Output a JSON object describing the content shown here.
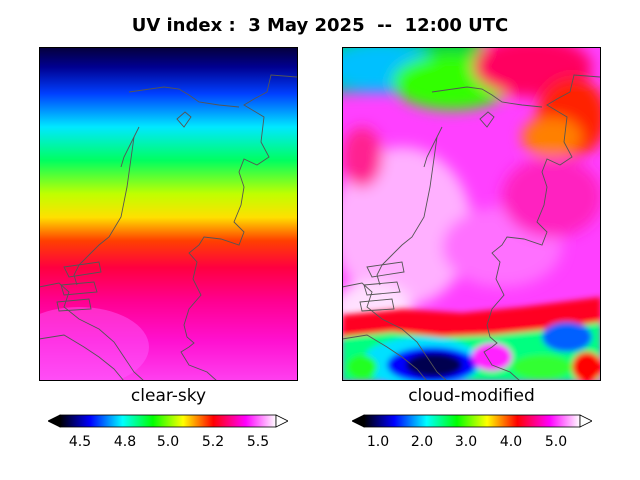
{
  "title": "UV index :  3 May 2025  --  12:00 UTC",
  "panels": [
    {
      "label": "clear-sky",
      "colorbar": {
        "ticks": [
          "4.5",
          "4.8",
          "5.0",
          "5.2",
          "5.5"
        ]
      },
      "field": "smooth latitudinal gradient, low in north, high in south"
    },
    {
      "label": "cloud-modified",
      "colorbar": {
        "ticks": [
          "1.0",
          "2.0",
          "3.0",
          "4.0",
          "5.0"
        ]
      },
      "field": "patchy cloud-modified values"
    }
  ],
  "colormap": [
    "#000000",
    "#0000ff",
    "#00ffff",
    "#00ff00",
    "#ffff00",
    "#ff0000",
    "#ff00ff",
    "#ffffff"
  ],
  "coastline_color": "#555555"
}
